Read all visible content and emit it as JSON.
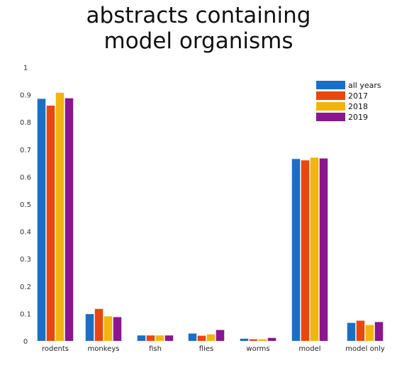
{
  "chart_data": {
    "type": "bar",
    "title_lines": [
      "abstracts containing",
      "model organisms"
    ],
    "xlabel": "",
    "ylabel": "",
    "ylim": [
      0,
      1
    ],
    "yticks": [
      "0",
      "0.1",
      "0.2",
      "0.3",
      "0.4",
      "0.5",
      "0.6",
      "0.7",
      "0.8",
      "0.9",
      "1"
    ],
    "grid": false,
    "legend_position": "top-right",
    "categories": [
      "rodents",
      "monkeys",
      "fish",
      "flies",
      "worms",
      "model",
      "model only"
    ],
    "series": [
      {
        "name": "all years",
        "color": "#1a6fc4",
        "values": [
          0.885,
          0.098,
          0.02,
          0.027,
          0.008,
          0.665,
          0.066
        ]
      },
      {
        "name": "2017",
        "color": "#e8470f",
        "values": [
          0.86,
          0.117,
          0.02,
          0.019,
          0.006,
          0.66,
          0.074
        ]
      },
      {
        "name": "2018",
        "color": "#f2b40e",
        "values": [
          0.907,
          0.09,
          0.02,
          0.024,
          0.006,
          0.67,
          0.058
        ]
      },
      {
        "name": "2019",
        "color": "#8a178f",
        "values": [
          0.887,
          0.087,
          0.02,
          0.04,
          0.011,
          0.667,
          0.069
        ]
      }
    ]
  }
}
